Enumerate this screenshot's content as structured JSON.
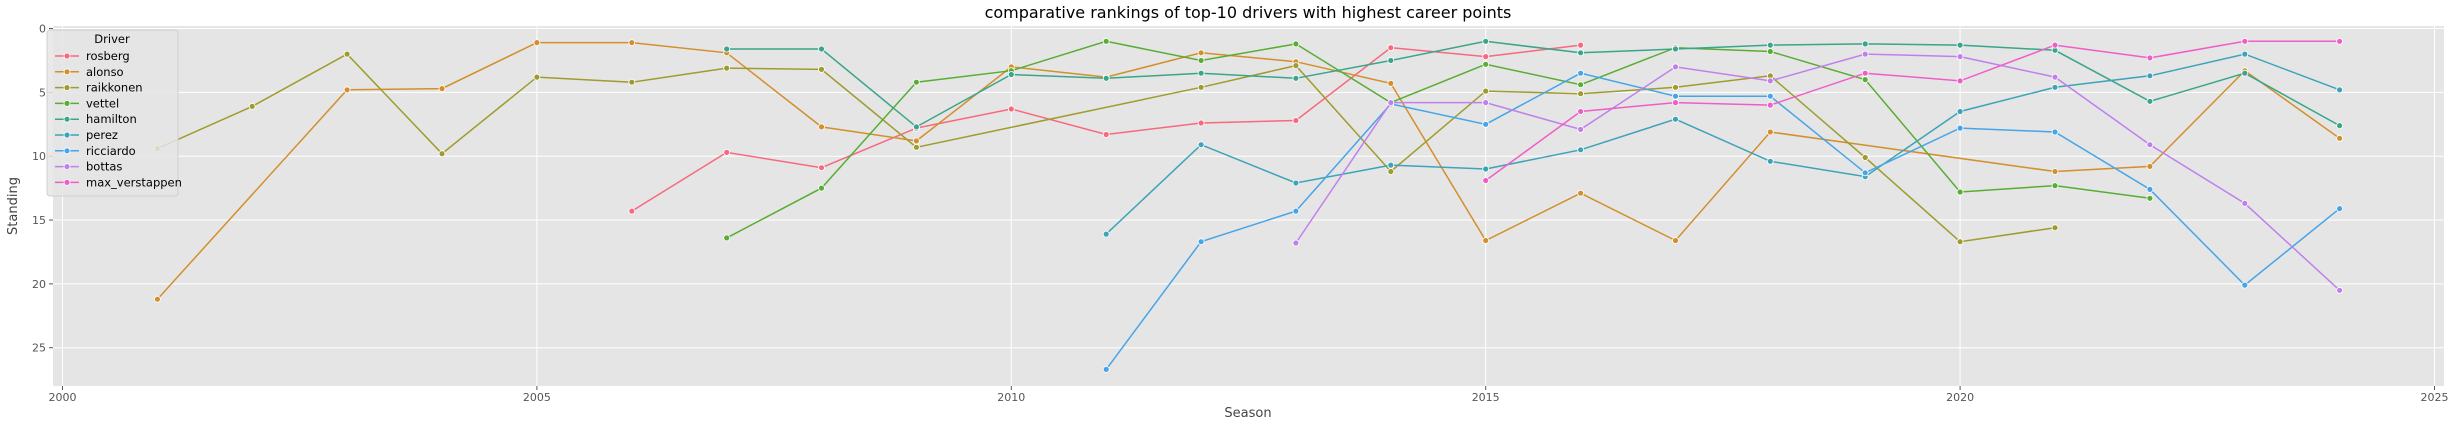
{
  "chart_data": {
    "type": "line",
    "title": "comparative rankings of top-10 drivers with highest career points",
    "xlabel": "Season",
    "ylabel": "Standing",
    "xlim": [
      1999.9,
      2025.1
    ],
    "ylim": [
      28,
      -0.2
    ],
    "y_inverted": true,
    "x_ticks": [
      2000,
      2005,
      2010,
      2015,
      2020,
      2025
    ],
    "y_ticks": [
      0,
      5,
      10,
      15,
      20,
      25
    ],
    "grid": true,
    "legend_title": "Driver",
    "legend_position": "upper-left",
    "series": [
      {
        "name": "rosberg",
        "color": "#f7697e",
        "points": [
          [
            2006,
            14.3
          ],
          [
            2007,
            9.7
          ],
          [
            2008,
            10.9
          ],
          [
            2009,
            7.8
          ],
          [
            2010,
            6.3
          ],
          [
            2011,
            8.3
          ],
          [
            2012,
            7.4
          ],
          [
            2013,
            7.2
          ],
          [
            2014,
            1.5
          ],
          [
            2015,
            2.2
          ],
          [
            2016,
            1.3
          ]
        ]
      },
      {
        "name": "alonso",
        "color": "#d28f2c",
        "points": [
          [
            2001,
            21.2
          ],
          [
            2003,
            4.8
          ],
          [
            2004,
            4.7
          ],
          [
            2005,
            1.1
          ],
          [
            2006,
            1.1
          ],
          [
            2007,
            1.9
          ],
          [
            2008,
            7.7
          ],
          [
            2009,
            8.8
          ],
          [
            2010,
            3
          ],
          [
            2011,
            3.8
          ],
          [
            2012,
            1.9
          ],
          [
            2013,
            2.6
          ],
          [
            2014,
            4.3
          ],
          [
            2015,
            16.6
          ],
          [
            2016,
            12.9
          ],
          [
            2017,
            16.6
          ],
          [
            2018,
            8.1
          ],
          [
            2021,
            11.2
          ],
          [
            2022,
            10.8
          ],
          [
            2023,
            3.3
          ],
          [
            2024,
            8.6
          ]
        ]
      },
      {
        "name": "raikkonen",
        "color": "#9f9c2d",
        "points": [
          [
            2001,
            9.4
          ],
          [
            2002,
            6.1
          ],
          [
            2003,
            2
          ],
          [
            2004,
            9.8
          ],
          [
            2005,
            3.8
          ],
          [
            2006,
            4.2
          ],
          [
            2007,
            3.1
          ],
          [
            2008,
            3.2
          ],
          [
            2009,
            9.3
          ],
          [
            2012,
            4.6
          ],
          [
            2013,
            2.9
          ],
          [
            2014,
            11.2
          ],
          [
            2015,
            4.9
          ],
          [
            2016,
            5.1
          ],
          [
            2017,
            4.6
          ],
          [
            2018,
            3.7
          ],
          [
            2019,
            10.1
          ],
          [
            2020,
            16.7
          ],
          [
            2021,
            15.6
          ]
        ]
      },
      {
        "name": "vettel",
        "color": "#58ad33",
        "points": [
          [
            2007,
            16.4
          ],
          [
            2008,
            12.5
          ],
          [
            2009,
            4.2
          ],
          [
            2010,
            3.3
          ],
          [
            2011,
            1
          ],
          [
            2012,
            2.5
          ],
          [
            2013,
            1.2
          ],
          [
            2014,
            5.8
          ],
          [
            2015,
            2.8
          ],
          [
            2016,
            4.4
          ],
          [
            2017,
            1.5
          ],
          [
            2018,
            1.8
          ],
          [
            2019,
            4
          ],
          [
            2020,
            12.8
          ],
          [
            2021,
            12.3
          ],
          [
            2022,
            13.3
          ]
        ]
      },
      {
        "name": "hamilton",
        "color": "#3aa58a",
        "points": [
          [
            2007,
            1.6
          ],
          [
            2008,
            1.6
          ],
          [
            2009,
            7.7
          ],
          [
            2010,
            3.6
          ],
          [
            2011,
            3.9
          ],
          [
            2012,
            3.5
          ],
          [
            2013,
            3.9
          ],
          [
            2014,
            2.5
          ],
          [
            2015,
            1
          ],
          [
            2016,
            1.9
          ],
          [
            2017,
            1.6
          ],
          [
            2018,
            1.3
          ],
          [
            2019,
            1.2
          ],
          [
            2020,
            1.3
          ],
          [
            2021,
            1.7
          ],
          [
            2022,
            5.7
          ],
          [
            2023,
            3.5
          ],
          [
            2024,
            7.6
          ]
        ]
      },
      {
        "name": "perez",
        "color": "#3ca3b8",
        "points": [
          [
            2011,
            16.1
          ],
          [
            2012,
            9.1
          ],
          [
            2013,
            12.1
          ],
          [
            2014,
            10.7
          ],
          [
            2015,
            11
          ],
          [
            2016,
            9.5
          ],
          [
            2017,
            7.1
          ],
          [
            2018,
            10.4
          ],
          [
            2019,
            11.6
          ],
          [
            2020,
            6.5
          ],
          [
            2021,
            4.6
          ],
          [
            2022,
            3.7
          ],
          [
            2023,
            2
          ],
          [
            2024,
            4.8
          ]
        ]
      },
      {
        "name": "ricciardo",
        "color": "#46a4e8",
        "points": [
          [
            2011,
            26.7
          ],
          [
            2012,
            16.7
          ],
          [
            2013,
            14.3
          ],
          [
            2014,
            5.9
          ],
          [
            2015,
            7.5
          ],
          [
            2016,
            3.5
          ],
          [
            2017,
            5.3
          ],
          [
            2018,
            5.3
          ],
          [
            2019,
            11.3
          ],
          [
            2020,
            7.8
          ],
          [
            2021,
            8.1
          ],
          [
            2022,
            12.6
          ],
          [
            2023,
            20.1
          ],
          [
            2024,
            14.1
          ]
        ]
      },
      {
        "name": "bottas",
        "color": "#c17fec",
        "points": [
          [
            2013,
            16.8
          ],
          [
            2014,
            5.8
          ],
          [
            2015,
            5.8
          ],
          [
            2016,
            7.9
          ],
          [
            2017,
            3
          ],
          [
            2018,
            4.1
          ],
          [
            2019,
            2
          ],
          [
            2020,
            2.2
          ],
          [
            2021,
            3.8
          ],
          [
            2022,
            9.1
          ],
          [
            2023,
            13.7
          ],
          [
            2024,
            20.5
          ]
        ]
      },
      {
        "name": "max_verstappen",
        "color": "#ef5ec7",
        "points": [
          [
            2015,
            11.9
          ],
          [
            2016,
            6.5
          ],
          [
            2017,
            5.8
          ],
          [
            2018,
            6
          ],
          [
            2019,
            3.5
          ],
          [
            2020,
            4.1
          ],
          [
            2021,
            1.3
          ],
          [
            2022,
            2.3
          ],
          [
            2023,
            1
          ],
          [
            2024,
            1
          ]
        ]
      }
    ]
  }
}
